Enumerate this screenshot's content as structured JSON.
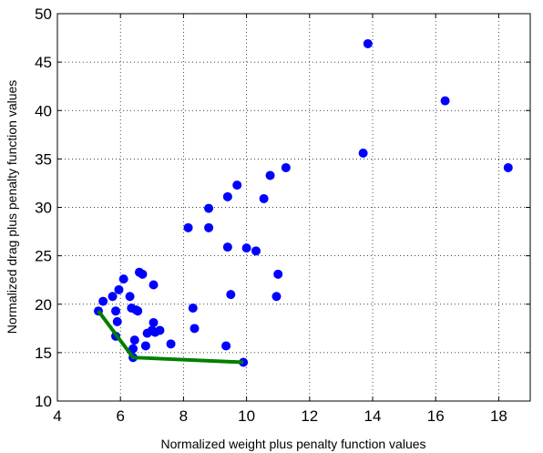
{
  "chart_data": {
    "type": "scatter",
    "title": "",
    "xlabel": "Normalized weight plus penalty function values",
    "ylabel": "Normalized drag plus penalty function values",
    "xlim": [
      4,
      19
    ],
    "ylim": [
      10,
      50
    ],
    "xticks": [
      4,
      6,
      8,
      10,
      12,
      14,
      16,
      18
    ],
    "yticks": [
      10,
      15,
      20,
      25,
      30,
      35,
      40,
      45,
      50
    ],
    "grid": true,
    "legend": "none",
    "series": [
      {
        "kind": "scatter",
        "color": "#0000ff",
        "points": [
          [
            5.3,
            19.3
          ],
          [
            5.45,
            20.3
          ],
          [
            5.75,
            20.8
          ],
          [
            5.85,
            16.7
          ],
          [
            5.85,
            19.3
          ],
          [
            5.9,
            18.2
          ],
          [
            5.95,
            21.5
          ],
          [
            6.1,
            22.6
          ],
          [
            6.3,
            20.8
          ],
          [
            6.35,
            19.6
          ],
          [
            6.4,
            14.5
          ],
          [
            6.4,
            15.4
          ],
          [
            6.45,
            16.3
          ],
          [
            6.5,
            19.4
          ],
          [
            6.55,
            19.3
          ],
          [
            6.6,
            23.3
          ],
          [
            6.7,
            23.1
          ],
          [
            6.8,
            15.7
          ],
          [
            6.85,
            17.0
          ],
          [
            7.0,
            17.3
          ],
          [
            7.05,
            18.1
          ],
          [
            7.05,
            22.0
          ],
          [
            7.1,
            17.1
          ],
          [
            7.25,
            17.3
          ],
          [
            7.6,
            15.9
          ],
          [
            8.15,
            27.9
          ],
          [
            8.3,
            19.6
          ],
          [
            8.35,
            17.5
          ],
          [
            8.8,
            27.9
          ],
          [
            8.8,
            29.9
          ],
          [
            9.35,
            15.7
          ],
          [
            9.4,
            31.1
          ],
          [
            9.4,
            25.9
          ],
          [
            9.5,
            21.0
          ],
          [
            9.7,
            32.3
          ],
          [
            9.9,
            14.0
          ],
          [
            10.0,
            25.8
          ],
          [
            10.3,
            25.5
          ],
          [
            10.55,
            30.9
          ],
          [
            10.75,
            33.3
          ],
          [
            10.95,
            20.8
          ],
          [
            11.0,
            23.1
          ],
          [
            11.25,
            34.1
          ],
          [
            13.7,
            35.6
          ],
          [
            13.85,
            46.9
          ],
          [
            16.3,
            41.0
          ],
          [
            18.3,
            34.1
          ]
        ]
      },
      {
        "kind": "line",
        "color": "#008000",
        "points": [
          [
            5.3,
            19.3
          ],
          [
            6.4,
            14.5
          ],
          [
            9.9,
            14.0
          ]
        ]
      }
    ]
  }
}
